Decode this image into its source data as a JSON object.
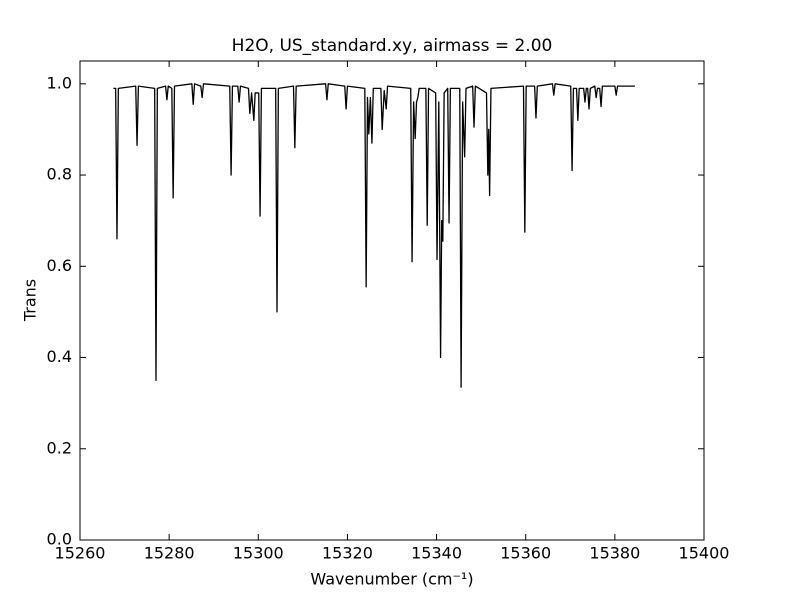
{
  "chart_data": {
    "type": "line",
    "title": "H2O, US_standard.xy, airmass = 2.00",
    "x_label": "Wavenumber (cm⁻¹)",
    "y_label": "Trans",
    "xlim": [
      15260,
      15400
    ],
    "ylim": [
      0,
      1.05
    ],
    "xticks": [
      15260,
      15280,
      15300,
      15320,
      15340,
      15360,
      15380,
      15400
    ],
    "yticks": [
      {
        "value": 0,
        "label": "0.0"
      },
      0.2,
      0.4,
      0.6,
      0.8,
      {
        "value": 1,
        "label": "1.0"
      }
    ],
    "grid": false,
    "series": [
      {
        "color": "#000000",
        "x": [
          15267.5,
          15268.0,
          15268.3,
          15268.6,
          15272.5,
          15272.8,
          15273.1,
          15276.75,
          15277.05,
          15277.35,
          15279.2,
          15279.5,
          15279.8,
          15280.6,
          15280.9,
          15281.2,
          15285.1,
          15285.4,
          15285.7,
          15287.1,
          15287.4,
          15287.7,
          15293.6,
          15293.9,
          15294.2,
          15295.4,
          15295.7,
          15296.0,
          15297.8,
          15298.1,
          15298.5,
          15299.0,
          15299.3,
          15300.1,
          15300.4,
          15300.7,
          15303.9,
          15304.2,
          15304.5,
          15307.9,
          15308.2,
          15308.5,
          15315.1,
          15315.4,
          15315.7,
          15319.4,
          15319.7,
          15320.0,
          15323.9,
          15324.2,
          15324.5,
          15324.8,
          15325.15,
          15325.5,
          15325.8,
          15327.5,
          15327.8,
          15328.25,
          15328.7,
          15329.0,
          15334.2,
          15334.5,
          15334.85,
          15335.2,
          15335.5,
          15335.8,
          15336.1,
          15337.6,
          15337.9,
          15338.2,
          15339.8,
          15340.1,
          15340.5,
          15340.9,
          15341.15,
          15341.4,
          15341.7,
          15342.5,
          15342.8,
          15343.1,
          15345.2,
          15345.5,
          15345.85,
          15346.3,
          15346.6,
          15348.1,
          15348.4,
          15348.7,
          15351.2,
          15351.5,
          15351.7,
          15351.9,
          15352.2,
          15359.5,
          15359.8,
          15360.1,
          15362.0,
          15362.3,
          15362.6,
          15366.0,
          15366.3,
          15366.6,
          15370.1,
          15370.4,
          15370.7,
          15371.4,
          15371.7,
          15372.0,
          15373.0,
          15373.3,
          15373.6,
          15373.9,
          15374.2,
          15374.5,
          15375.5,
          15375.8,
          15376.1,
          15376.6,
          15376.9,
          15377.2,
          15380.0,
          15380.3,
          15380.6,
          15384.5
        ],
        "values": [
          0.99,
          0.99,
          0.66,
          0.99,
          0.995,
          0.865,
          0.995,
          0.99,
          0.35,
          0.99,
          0.995,
          0.965,
          0.995,
          0.99,
          0.75,
          0.995,
          1.0,
          0.955,
          1.0,
          0.995,
          0.97,
          1.0,
          0.995,
          0.8,
          0.995,
          0.995,
          0.96,
          0.995,
          0.99,
          0.935,
          0.98,
          0.92,
          0.98,
          0.98,
          0.71,
          0.99,
          0.99,
          0.5,
          0.99,
          0.995,
          0.86,
          0.995,
          1.0,
          0.965,
          1.0,
          0.995,
          0.945,
          0.995,
          0.99,
          0.555,
          0.97,
          0.89,
          0.97,
          0.87,
          0.99,
          0.99,
          0.9,
          0.985,
          0.945,
          0.995,
          0.99,
          0.61,
          0.96,
          0.88,
          0.96,
          0.97,
          0.99,
          0.99,
          0.69,
          0.99,
          0.98,
          0.615,
          0.96,
          0.4,
          0.7,
          0.655,
          0.98,
          0.99,
          0.695,
          0.99,
          0.99,
          0.335,
          0.96,
          0.84,
          0.99,
          0.995,
          0.905,
          0.995,
          0.98,
          0.8,
          0.9,
          0.755,
          0.99,
          0.995,
          0.675,
          0.995,
          0.995,
          0.925,
          0.995,
          1.0,
          0.975,
          1.0,
          0.995,
          0.81,
          0.99,
          0.99,
          0.92,
          0.99,
          0.99,
          0.96,
          0.99,
          0.99,
          0.945,
          0.99,
          0.995,
          0.97,
          0.99,
          0.99,
          0.95,
          0.995,
          0.995,
          0.975,
          0.995,
          0.995
        ]
      }
    ]
  }
}
